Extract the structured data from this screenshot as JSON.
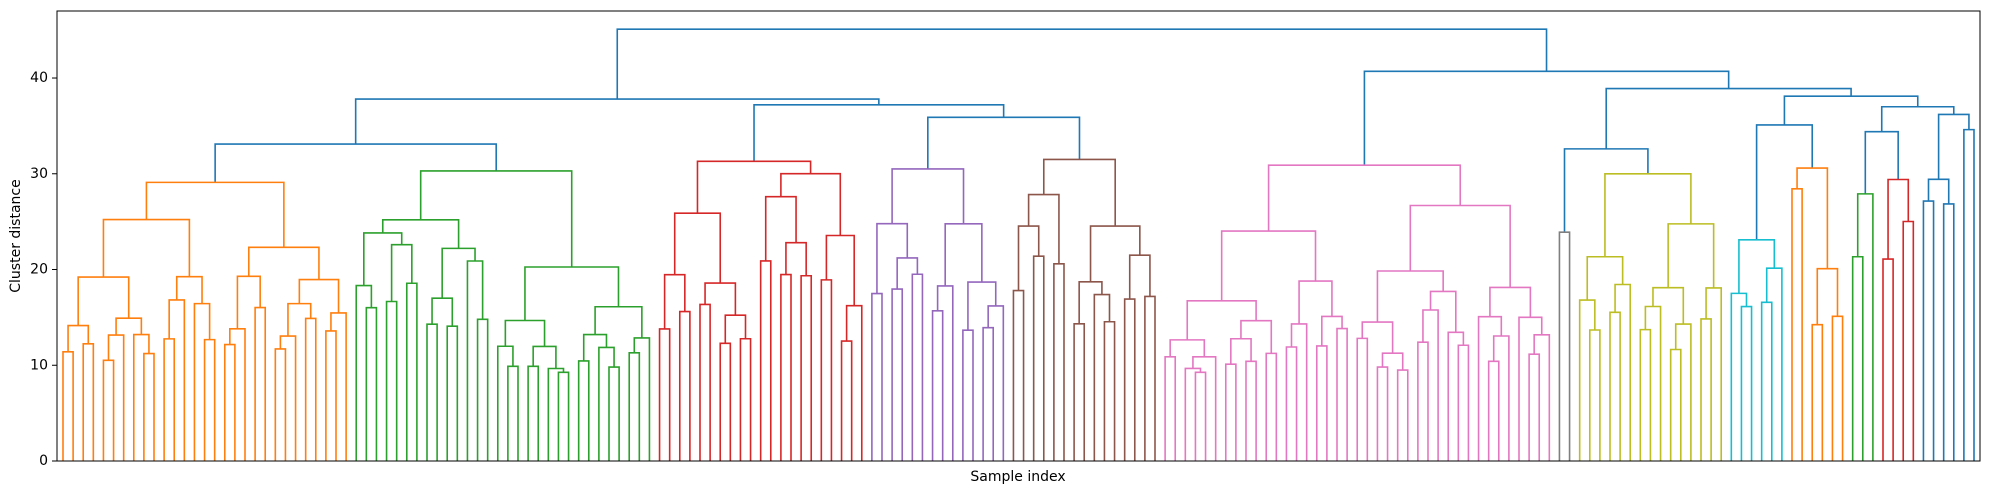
{
  "chart_data": {
    "type": "dendrogram",
    "title": "",
    "xlabel": "Sample index",
    "ylabel": "Cluster distance",
    "ylim": [
      0,
      47
    ],
    "yticks": [
      0,
      10,
      20,
      30,
      40
    ],
    "grid": false,
    "leaf_count": 190,
    "root_height": 45.1,
    "top_level_merges": [
      {
        "height": 45.1,
        "joins": "left half (orange, green, red, purple, brown) with right half (pink and remaining clusters)"
      },
      {
        "height": 37.8,
        "joins": "orange+green group with red+purple+brown group"
      },
      {
        "height": 33.1,
        "joins": "orange cluster with green cluster"
      },
      {
        "height": 37.2,
        "joins": "red cluster with purple+brown group"
      },
      {
        "height": 35.9,
        "joins": "purple cluster with brown cluster"
      },
      {
        "height": 40.7,
        "joins": "pink cluster with remaining right-side clusters"
      },
      {
        "height": 38.9,
        "joins": "gray+olive group with cyan/orange/green/red/blue group"
      },
      {
        "height": 32.6,
        "joins": "gray cluster with olive cluster"
      }
    ],
    "clusters": [
      {
        "color": "#ff7f0e",
        "leaves": 29,
        "merge_height": 29.1
      },
      {
        "color": "#2ca02c",
        "leaves": 30,
        "merge_height": 30.3
      },
      {
        "color": "#d62728",
        "leaves": 21,
        "merge_height": 31.3
      },
      {
        "color": "#9467bd",
        "leaves": 14,
        "merge_height": 30.5
      },
      {
        "color": "#8c564b",
        "leaves": 15,
        "merge_height": 31.5
      },
      {
        "color": "#e377c2",
        "leaves": 39,
        "merge_height": 30.9
      },
      {
        "color": "#7f7f7f",
        "leaves": 2,
        "merge_height": 23.9
      },
      {
        "color": "#bcbd22",
        "leaves": 15,
        "merge_height": 30.0
      },
      {
        "color": "#17becf",
        "leaves": 6,
        "merge_height": 23.1
      },
      {
        "color": "#ff7f0e",
        "leaves": 6,
        "merge_height": 30.6
      },
      {
        "color": "#2ca02c",
        "leaves": 3,
        "merge_height": 27.9
      },
      {
        "color": "#d62728",
        "leaves": 4,
        "merge_height": 29.4
      },
      {
        "color": "#1f77b4",
        "leaves": 6,
        "merge_height": 36.2
      }
    ],
    "link_color_above_threshold": "#1f77b4"
  }
}
